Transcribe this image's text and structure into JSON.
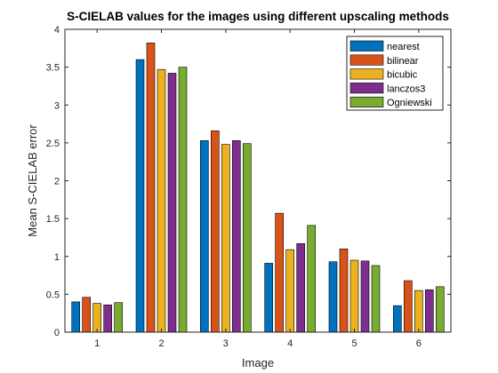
{
  "chart_data": {
    "type": "bar",
    "title": "S-CIELAB values for the images using different upscaling methods",
    "xlabel": "Image",
    "ylabel": "Mean S-CIELAB error",
    "categories": [
      "1",
      "2",
      "3",
      "4",
      "5",
      "6"
    ],
    "ylim": [
      0,
      4
    ],
    "yticks": [
      "0",
      "0.5",
      "1",
      "1.5",
      "2",
      "2.5",
      "3",
      "3.5",
      "4"
    ],
    "grid": false,
    "legend_position": "top-right",
    "series": [
      {
        "name": "nearest",
        "color": "#0072BD",
        "values": [
          0.4,
          3.6,
          2.53,
          0.91,
          0.93,
          0.35
        ]
      },
      {
        "name": "bilinear",
        "color": "#D95319",
        "values": [
          0.46,
          3.82,
          2.66,
          1.57,
          1.1,
          0.68
        ]
      },
      {
        "name": "bicubic",
        "color": "#EDB120",
        "values": [
          0.38,
          3.47,
          2.48,
          1.09,
          0.95,
          0.55
        ]
      },
      {
        "name": "lanczos3",
        "color": "#7E2F8E",
        "values": [
          0.36,
          3.42,
          2.53,
          1.17,
          0.94,
          0.56
        ]
      },
      {
        "name": "Ogniewski",
        "color": "#77AC30",
        "values": [
          0.39,
          3.5,
          2.49,
          1.41,
          0.88,
          0.6
        ]
      }
    ]
  }
}
